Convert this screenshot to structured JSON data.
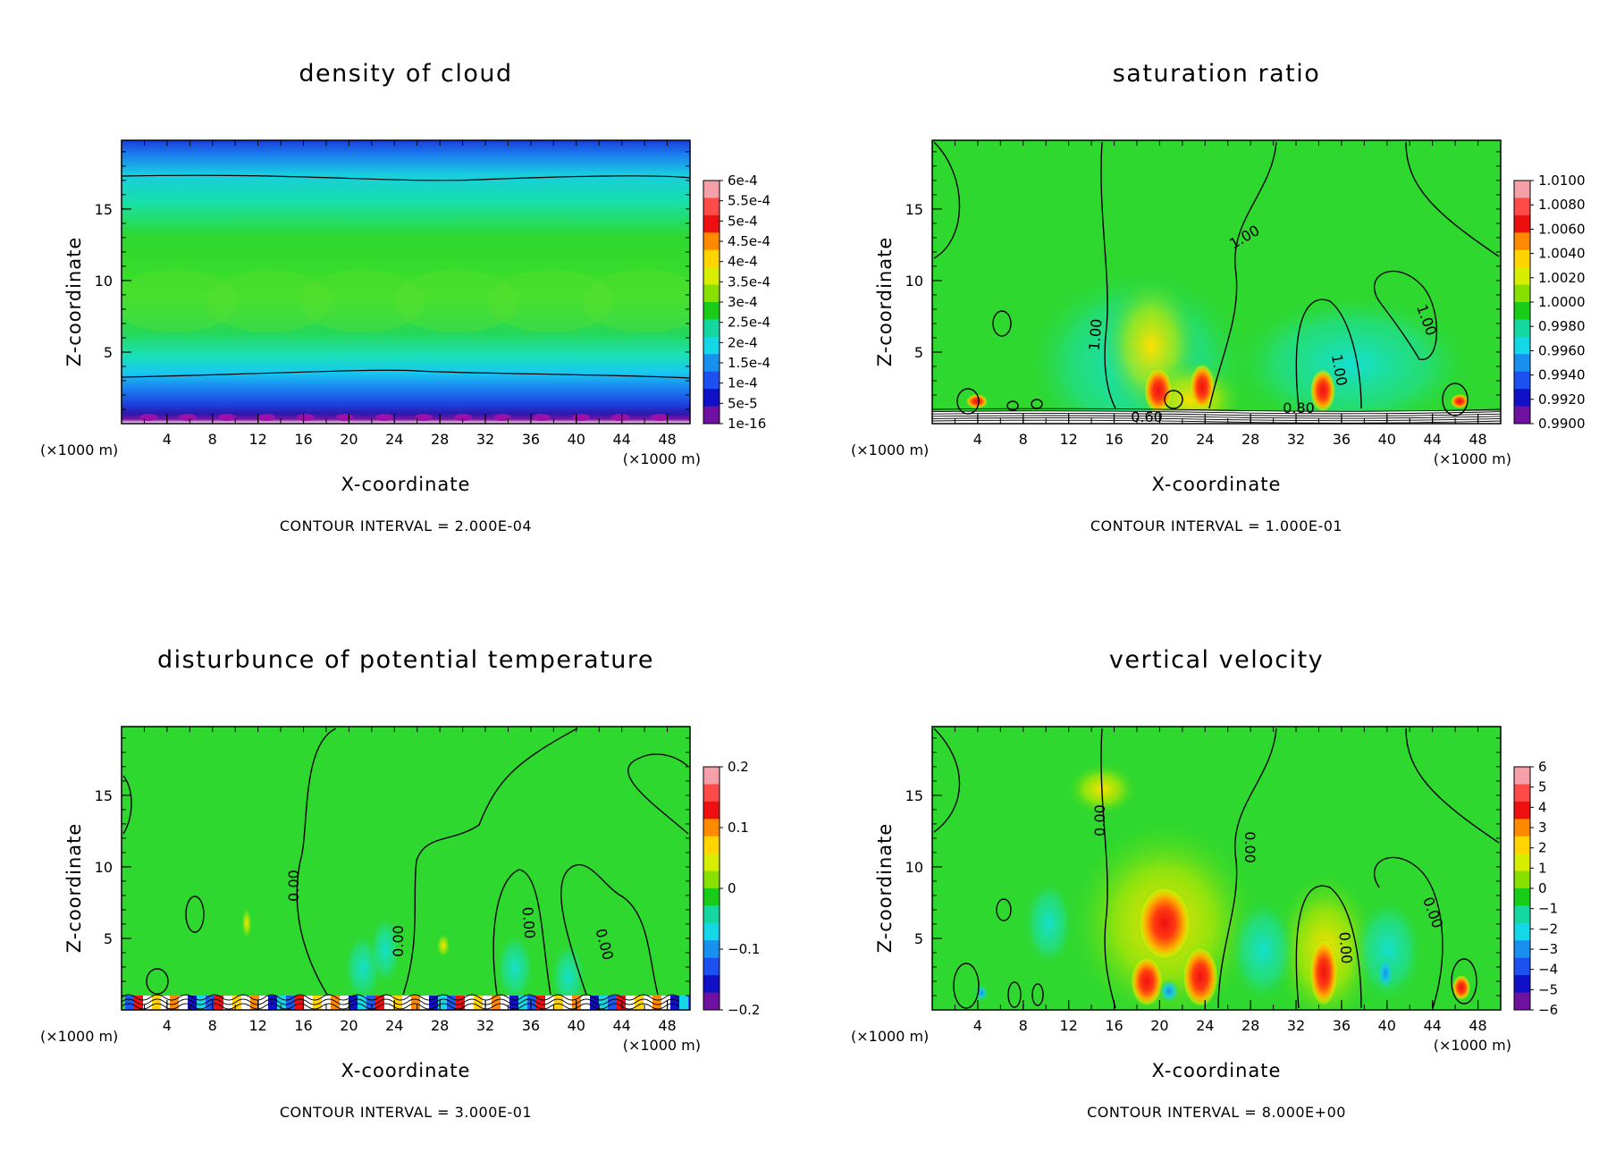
{
  "chart_data": [
    {
      "type": "heatmap",
      "title": "density of cloud",
      "xlabel": "X-coordinate",
      "ylabel": "Z-coordinate",
      "x_unit": "(×1000 m)",
      "z_unit": "(×1000 m)",
      "xlim": [
        0,
        50
      ],
      "ylim": [
        0,
        19.8
      ],
      "xticks": [
        4,
        8,
        12,
        16,
        20,
        24,
        28,
        32,
        36,
        40,
        44,
        48
      ],
      "yticks": [
        5,
        10,
        15
      ],
      "contour_interval": "CONTOUR INTERVAL = 2.000E-04",
      "colorbar_labels": [
        "6e-4",
        "5.5e-4",
        "5e-4",
        "4.5e-4",
        "4e-4",
        "3.5e-4",
        "3e-4",
        "2.5e-4",
        "2e-4",
        "1.5e-4",
        "1e-4",
        "5e-5",
        "1e-16"
      ],
      "contour_labels": []
    },
    {
      "type": "heatmap",
      "title": "saturation ratio",
      "xlabel": "X-coordinate",
      "ylabel": "Z-coordinate",
      "x_unit": "(×1000 m)",
      "z_unit": "(×1000 m)",
      "xlim": [
        0,
        50
      ],
      "ylim": [
        0,
        19.8
      ],
      "xticks": [
        4,
        8,
        12,
        16,
        20,
        24,
        28,
        32,
        36,
        40,
        44,
        48
      ],
      "yticks": [
        5,
        10,
        15
      ],
      "contour_interval": "CONTOUR INTERVAL = 1.000E-01",
      "colorbar_labels": [
        "1.0100",
        "1.0080",
        "1.0060",
        "1.0040",
        "1.0020",
        "1.0000",
        "0.9980",
        "0.9960",
        "0.9940",
        "0.9920",
        "0.9900"
      ],
      "contour_labels": [
        "1.00",
        "1.00",
        "1.00",
        "1.00",
        "0.60",
        "0.80"
      ]
    },
    {
      "type": "heatmap",
      "title": "disturbunce of potential temperature",
      "xlabel": "X-coordinate",
      "ylabel": "Z-coordinate",
      "x_unit": "(×1000 m)",
      "z_unit": "(×1000 m)",
      "xlim": [
        0,
        50
      ],
      "ylim": [
        0,
        19.8
      ],
      "xticks": [
        4,
        8,
        12,
        16,
        20,
        24,
        28,
        32,
        36,
        40,
        44,
        48
      ],
      "yticks": [
        5,
        10,
        15
      ],
      "contour_interval": "CONTOUR INTERVAL = 3.000E-01",
      "colorbar_labels": [
        "0.2",
        "0.1",
        "0",
        "−0.1",
        "−0.2"
      ],
      "contour_labels": [
        "0.00",
        "0.00",
        "0.00",
        "0.00"
      ]
    },
    {
      "type": "heatmap",
      "title": "vertical velocity",
      "xlabel": "X-coordinate",
      "ylabel": "Z-coordinate",
      "x_unit": "(×1000 m)",
      "z_unit": "(×1000 m)",
      "xlim": [
        0,
        50
      ],
      "ylim": [
        0,
        19.8
      ],
      "xticks": [
        4,
        8,
        12,
        16,
        20,
        24,
        28,
        32,
        36,
        40,
        44,
        48
      ],
      "yticks": [
        5,
        10,
        15
      ],
      "contour_interval": "CONTOUR INTERVAL = 8.000E+00",
      "colorbar_labels": [
        "6",
        "5",
        "4",
        "3",
        "2",
        "1",
        "0",
        "−1",
        "−2",
        "−3",
        "−4",
        "−5",
        "−6"
      ],
      "contour_labels": [
        "0.00",
        "0.00",
        "0.00",
        "0.00"
      ]
    }
  ],
  "colors": {
    "colorbar_scale": [
      "#f5a0a8",
      "#ff4a4a",
      "#ee1010",
      "#ff8a00",
      "#ffd400",
      "#d8ee00",
      "#88e000",
      "#18cc18",
      "#14d8a0",
      "#14d8e8",
      "#1890f0",
      "#1c50f0",
      "#1010c8",
      "#7010a0"
    ],
    "field_green": "#2ed82e",
    "field_cyan": "#19e6c8",
    "field_blue": "#1a5af0",
    "field_purple": "#8c14a0"
  }
}
